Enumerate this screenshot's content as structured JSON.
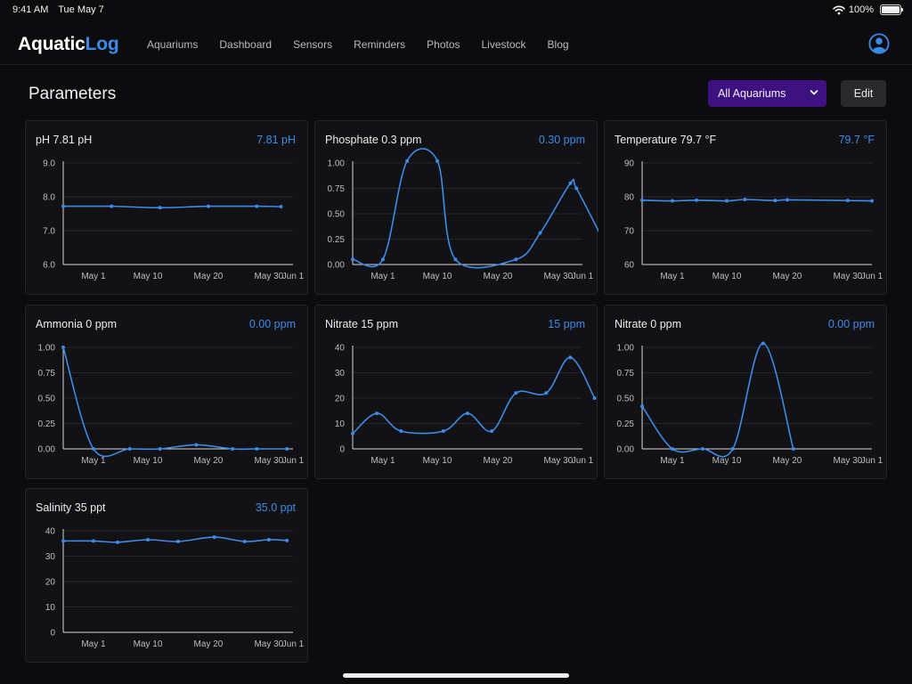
{
  "status_bar": {
    "time": "9:41 AM",
    "date": "Tue May 7",
    "battery": "100%"
  },
  "app": {
    "logo_part1": "Aquatic",
    "logo_part2": "Log"
  },
  "nav": [
    "Aquariums",
    "Dashboard",
    "Sensors",
    "Reminders",
    "Photos",
    "Livestock",
    "Blog"
  ],
  "page": {
    "title": "Parameters",
    "aquarium_select": "All Aquariums",
    "edit_label": "Edit"
  },
  "colors": {
    "accent": "#3d8be8",
    "select_bg": "#3d1180",
    "background": "#0c0c0e",
    "card_bg": "#121214"
  },
  "icons": {
    "user": "user-circle-icon",
    "wifi": "wifi-icon",
    "battery": "battery-icon",
    "chevron": "chevron-down-icon"
  },
  "chart_data": [
    {
      "type": "line",
      "title": "pH 7.81 pH",
      "value_label": "7.81 pH",
      "ylim": [
        6,
        9
      ],
      "yticks": [
        "6.0",
        "7.0",
        "8.0",
        "9.0"
      ],
      "x_ticks": [
        "May 1",
        "May 10",
        "May 20",
        "May 30",
        "Jun 1"
      ],
      "x": [
        -4,
        4,
        12,
        20,
        28,
        32
      ],
      "y": [
        7.72,
        7.72,
        7.68,
        7.72,
        7.72,
        7.71
      ]
    },
    {
      "type": "line",
      "title": "Phosphate 0.3 ppm",
      "value_label": "0.30 ppm",
      "ylim": [
        0,
        1
      ],
      "yticks": [
        "0.00",
        "0.25",
        "0.50",
        "0.75",
        "1.00"
      ],
      "x_ticks": [
        "May 1",
        "May 10",
        "May 20",
        "May 30",
        "Jun 1"
      ],
      "x": [
        -4,
        1,
        5,
        10,
        13,
        23,
        27,
        32,
        33,
        37
      ],
      "y": [
        0.05,
        0.05,
        1.02,
        1.02,
        0.05,
        0.05,
        0.31,
        0.8,
        0.75,
        0.29
      ]
    },
    {
      "type": "line",
      "title": "Temperature 79.7 °F",
      "value_label": "79.7 °F",
      "ylim": [
        60,
        90
      ],
      "yticks": [
        "60",
        "70",
        "80",
        "90"
      ],
      "x_ticks": [
        "May 1",
        "May 10",
        "May 20",
        "May 30",
        "Jun 1"
      ],
      "x": [
        -4,
        1,
        5,
        10,
        13,
        18,
        20,
        30,
        34
      ],
      "y": [
        79.0,
        78.8,
        79.0,
        78.8,
        79.2,
        78.9,
        79.1,
        78.9,
        78.8
      ]
    },
    {
      "type": "line",
      "title": "Ammonia  0 ppm",
      "value_label": "0.00 ppm",
      "ylim": [
        0,
        1
      ],
      "yticks": [
        "0.00",
        "0.25",
        "0.50",
        "0.75",
        "1.00"
      ],
      "x_ticks": [
        "May 1",
        "May 10",
        "May 20",
        "May 30",
        "Jun 1"
      ],
      "x": [
        -4,
        1,
        7,
        12,
        18,
        24,
        28,
        33
      ],
      "y": [
        1.0,
        0.0,
        0.0,
        0.0,
        0.04,
        0.0,
        0.0,
        0.0
      ]
    },
    {
      "type": "line",
      "title": "Nitrate 15  ppm",
      "value_label": "15 ppm",
      "ylim": [
        0,
        40
      ],
      "yticks": [
        "0",
        "10",
        "20",
        "30",
        "40"
      ],
      "x_ticks": [
        "May 1",
        "May 10",
        "May 20",
        "May 30",
        "Jun 1"
      ],
      "x": [
        -4,
        0,
        4,
        11,
        15,
        19,
        23,
        28,
        32,
        36
      ],
      "y": [
        6,
        14,
        7,
        7,
        14,
        7,
        22,
        22,
        36,
        20
      ]
    },
    {
      "type": "line",
      "title": "Nitrate 0 ppm",
      "value_label": "0.00 ppm",
      "ylim": [
        0,
        1
      ],
      "yticks": [
        "0.00",
        "0.25",
        "0.50",
        "0.75",
        "1.00"
      ],
      "x_ticks": [
        "May 1",
        "May 10",
        "May 20",
        "May 30",
        "Jun 1"
      ],
      "x": [
        -4,
        1,
        6,
        11,
        16,
        21
      ],
      "y": [
        0.42,
        0.0,
        0.0,
        0.0,
        1.04,
        0.0
      ]
    },
    {
      "type": "line",
      "title": "Salinity 35 ppt",
      "value_label": "35.0 ppt",
      "ylim": [
        0,
        40
      ],
      "yticks": [
        "0",
        "10",
        "20",
        "30",
        "40"
      ],
      "x_ticks": [
        "May 1",
        "May 10",
        "May 20",
        "May 30",
        "Jun 1"
      ],
      "x": [
        -4,
        1,
        5,
        10,
        15,
        21,
        26,
        30,
        33
      ],
      "y": [
        36,
        36,
        35.5,
        36.5,
        35.8,
        37.5,
        35.8,
        36.5,
        36.2
      ]
    }
  ]
}
